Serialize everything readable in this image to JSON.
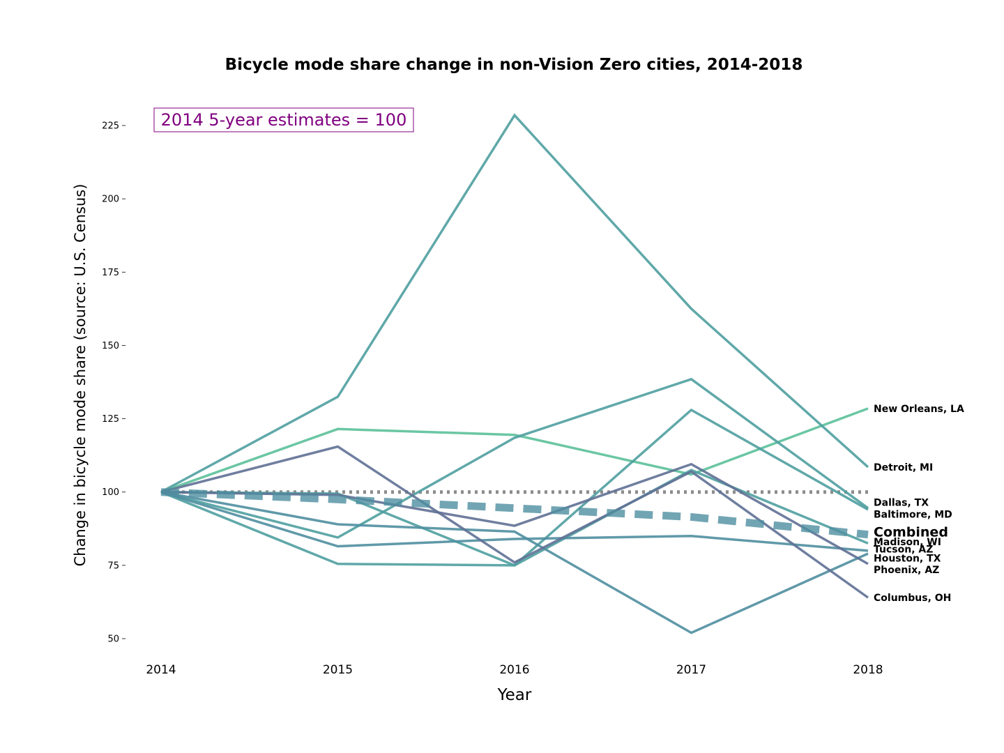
{
  "chart_data": {
    "type": "line",
    "title": "Bicycle mode share change in non-Vision Zero cities, 2014-2018",
    "xlabel": "Year",
    "ylabel": "Change in bicycle mode share (source: U.S. Census)",
    "x": [
      2014,
      2015,
      2016,
      2017,
      2018
    ],
    "x_tick_labels": [
      "2014",
      "2015",
      "2016",
      "2017",
      "2018"
    ],
    "yticks": [
      50,
      75,
      100,
      125,
      150,
      175,
      200,
      225
    ],
    "ylim": [
      44,
      234
    ],
    "grid": false,
    "annotation": {
      "text": "2014 5-year estimates = 100",
      "color": "#800080"
    },
    "baseline": {
      "value": 100,
      "color": "#8c8c8c"
    },
    "series": [
      {
        "name": "New Orleans, LA",
        "values": [
          100,
          121.5,
          119.5,
          106,
          128.5
        ],
        "color": "#5bc09a"
      },
      {
        "name": "Detroit, MI",
        "values": [
          100,
          132.5,
          228.5,
          162.5,
          108.5
        ],
        "color": "#4f9ea0"
      },
      {
        "name": "Dallas, TX",
        "values": [
          100,
          84.5,
          118.5,
          138.5,
          94.5
        ],
        "color": "#4f9ea0"
      },
      {
        "name": "Baltimore, MD",
        "values": [
          100,
          99.5,
          75,
          128,
          94
        ],
        "color": "#4f9ea0"
      },
      {
        "name": "Madison, WI",
        "values": [
          100,
          75.5,
          75,
          107.5,
          82.5
        ],
        "color": "#4f9ea0"
      },
      {
        "name": "Tucson, AZ",
        "values": [
          100,
          81.5,
          84,
          85,
          80
        ],
        "color": "#4f8ea0"
      },
      {
        "name": "Houston, TX",
        "values": [
          100,
          89,
          86.5,
          52,
          79
        ],
        "color": "#4f8ea0"
      },
      {
        "name": "Phoenix, AZ",
        "values": [
          100,
          99,
          88.5,
          109.5,
          75.5
        ],
        "color": "#5f7095"
      },
      {
        "name": "Columbus, OH",
        "values": [
          100,
          115.5,
          76,
          107,
          64
        ],
        "color": "#5f7095"
      },
      {
        "name": "Combined",
        "values": [
          100,
          97.5,
          94.5,
          91.5,
          85.5
        ],
        "color": "#4f8ea0"
      }
    ],
    "label_positions_y": [
      128.5,
      108.5,
      96.5,
      92.5,
      83,
      80.5,
      77.5,
      73.5,
      64,
      86.5
    ]
  }
}
